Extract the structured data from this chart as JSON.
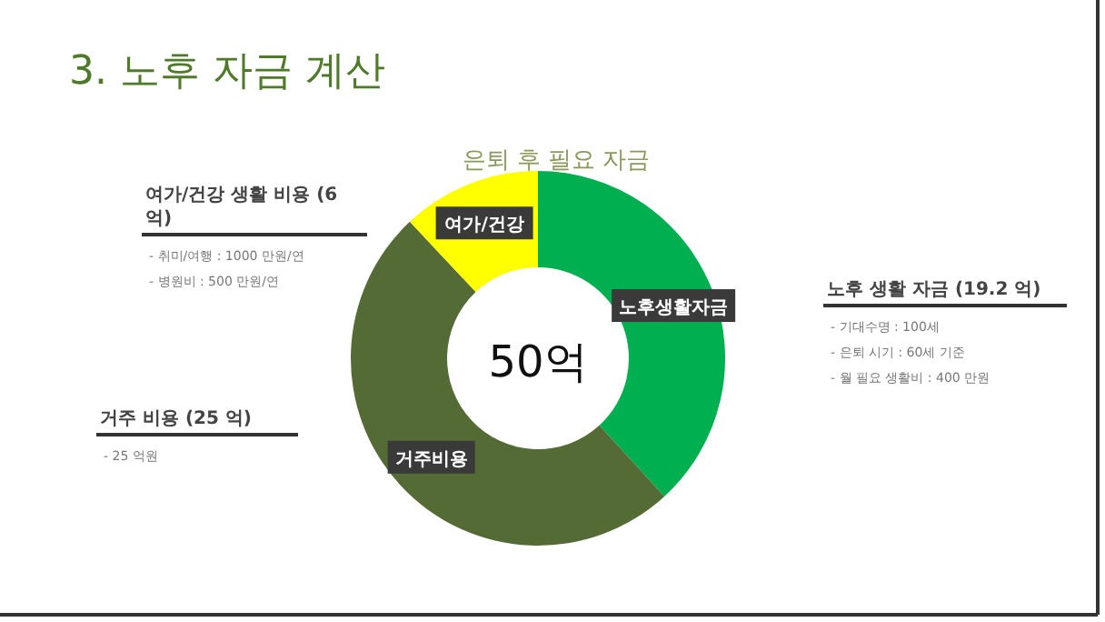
{
  "chart_data": {
    "type": "donut",
    "title": "3. 노후 자금 계산",
    "subtitle": "은퇴 후 필요 자금",
    "categories": [
      "노후생활자금",
      "거주비용",
      "여가/건강"
    ],
    "values": [
      38.2,
      49.8,
      12
    ],
    "colors": [
      "#00b050",
      "#556b35",
      "#ffff00"
    ],
    "legend": false,
    "annotations": [
      "50억",
      "여가/건강 생활 비용 (6 억)",
      "- 취미/여행 : 1000 만원/연",
      "- 병원비 : 500 만원/연",
      "노후 생활 자금 (19.2 억)",
      "- 기대수명 : 100세",
      "- 은퇴 시기 : 60세 기준",
      "- 월 필요 생활비 : 400 만원",
      "거주 비용 (25 억)",
      "- 25 억원"
    ]
  }
}
